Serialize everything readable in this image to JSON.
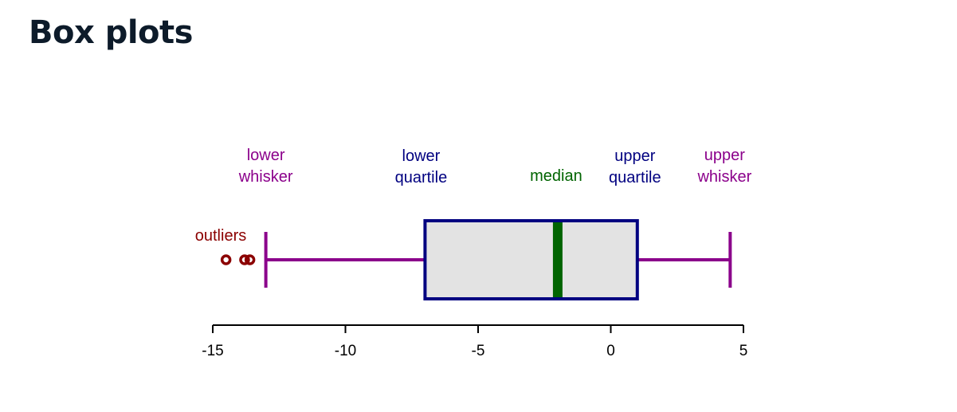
{
  "page": {
    "title": "Box plots"
  },
  "colors": {
    "whisker": "#8b008b",
    "box_edge": "#000080",
    "box_fill": "#e3e3e3",
    "median": "#006400",
    "outlier": "#8b0000",
    "axis": "#000000"
  },
  "chart_data": {
    "type": "box",
    "orientation": "horizontal",
    "xlim": [
      -15,
      5
    ],
    "ticks": [
      -15,
      -10,
      -5,
      0,
      5
    ],
    "tick_labels": [
      "-15",
      "-10",
      "-5",
      "0",
      "5"
    ],
    "box": {
      "lower_whisker": -13,
      "lower_quartile": -7,
      "median": -2,
      "upper_quartile": 1,
      "upper_whisker": 4.5,
      "outliers": [
        -14.5,
        -13.8,
        -13.6
      ]
    },
    "annotations": {
      "lower_whisker": [
        "lower",
        "whisker"
      ],
      "lower_quartile": [
        "lower",
        "quartile"
      ],
      "median": [
        "median"
      ],
      "upper_quartile": [
        "upper",
        "quartile"
      ],
      "upper_whisker": [
        "upper",
        "whisker"
      ],
      "outliers": [
        "outliers"
      ]
    },
    "grid": false
  }
}
